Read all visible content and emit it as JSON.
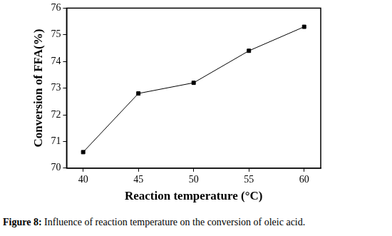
{
  "chart_data": {
    "type": "line",
    "title": "Figure 8: Influence of reaction temperature on the conversion of oleic acid.",
    "x_label": "Reaction temperature (°C)",
    "y_label": "Conversion of FFA(%)",
    "x": [
      40,
      45,
      50,
      55,
      60
    ],
    "series": [
      {
        "name": "Conversion of FFA",
        "color": "#000000",
        "marker": "square",
        "line_style": "solid",
        "values": [
          70.6,
          72.8,
          73.2,
          74.4,
          75.3
        ]
      }
    ],
    "xlim": [
      38.5,
      61.5
    ],
    "xticks": [
      40,
      45,
      50,
      55,
      60
    ],
    "ylim": [
      70,
      76
    ],
    "yticks": [
      70,
      71,
      72,
      73,
      74,
      75,
      76
    ],
    "grid": false
  }
}
